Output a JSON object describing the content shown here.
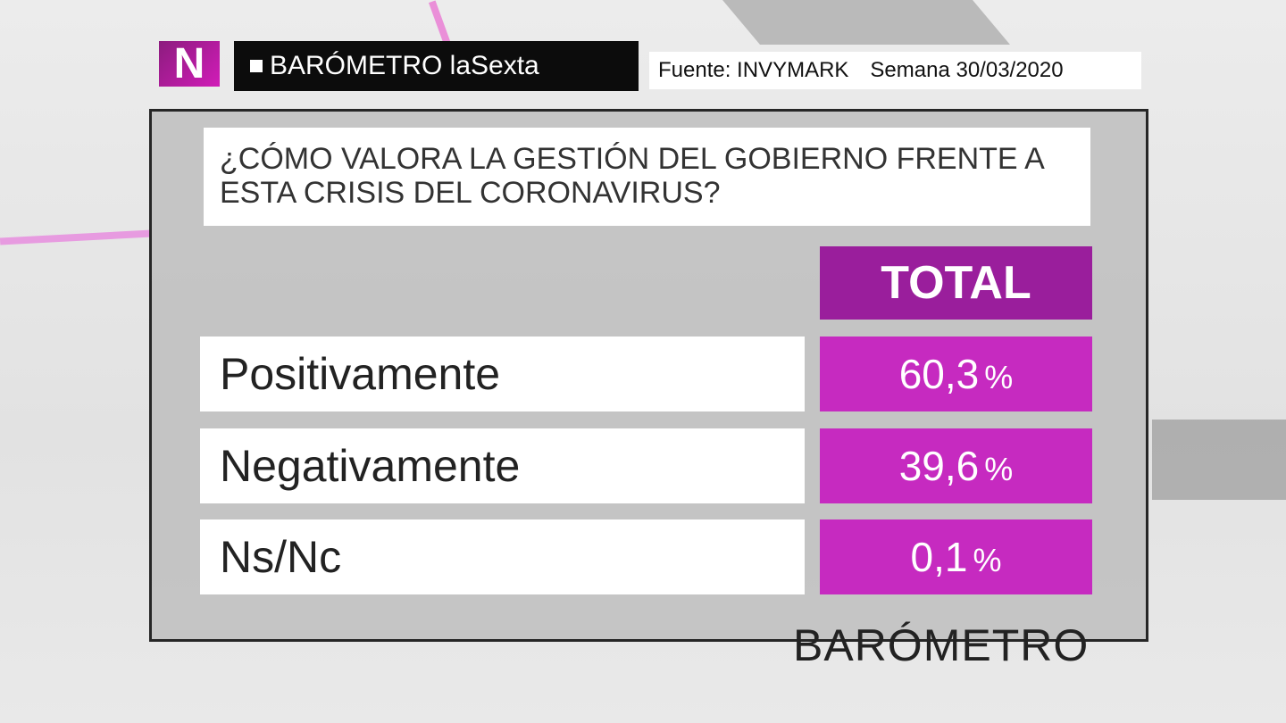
{
  "header": {
    "logo": "N",
    "brand": "BARÓMETRO laSexta",
    "source": "Fuente: INVYMARK",
    "week": "Semana 30/03/2020"
  },
  "question": {
    "lines": [
      "¿CÓMO VALORA LA GESTIÓN DEL GOBIERNO FRENTE A",
      "ESTA CRISIS DEL CORONAVIRUS?"
    ]
  },
  "table": {
    "column": "TOTAL",
    "rows": [
      {
        "label": "Positivamente",
        "value": "60,3",
        "unit": "%"
      },
      {
        "label": "Negativamente",
        "value": "39,6",
        "unit": "%"
      },
      {
        "label": "Ns/Nc",
        "value": "0,1",
        "unit": "%"
      }
    ]
  },
  "background": {
    "watermark": "BARÓMETRO"
  }
}
